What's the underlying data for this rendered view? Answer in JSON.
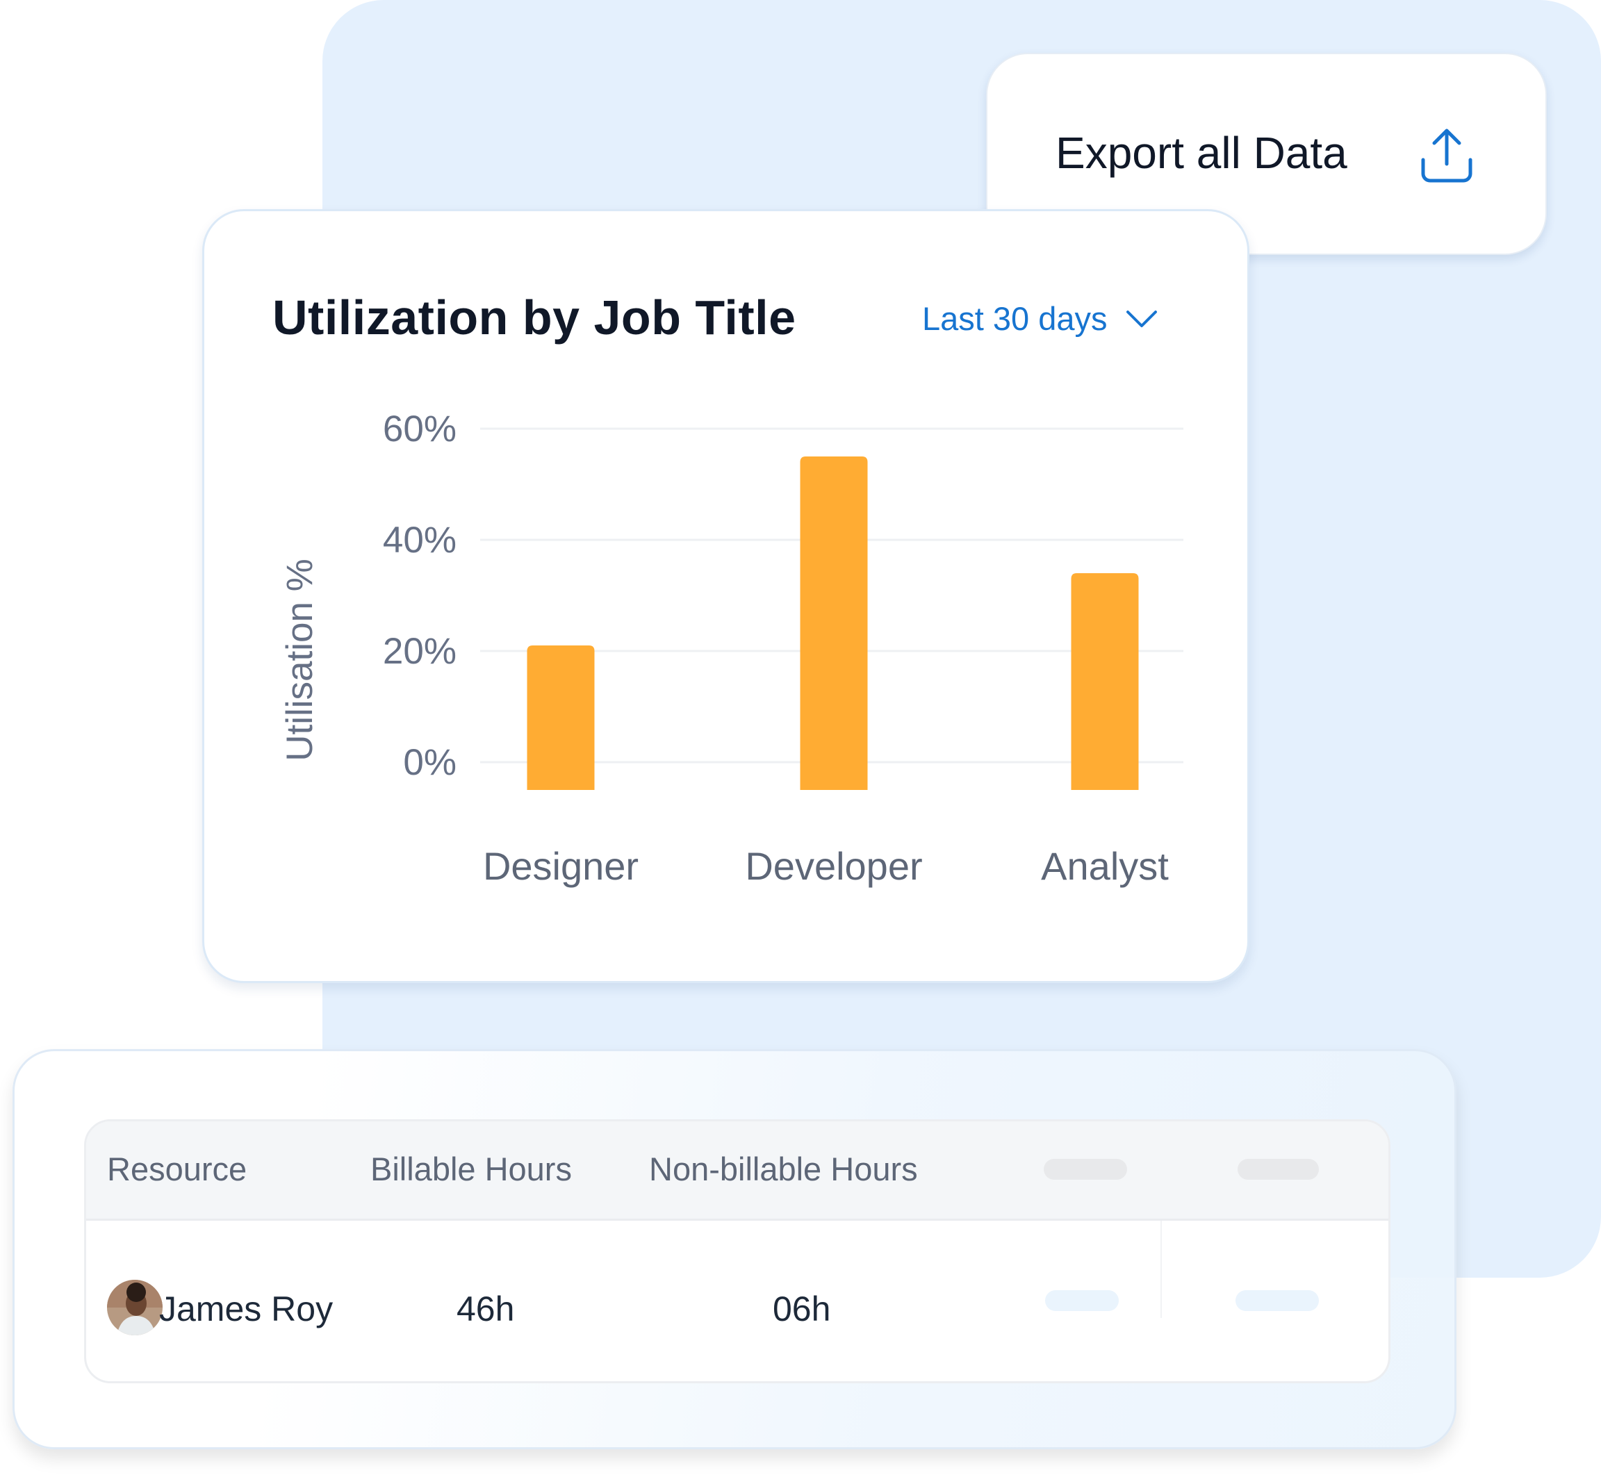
{
  "export": {
    "label": "Export all Data",
    "icon": "upload-icon",
    "color": "#1774d0"
  },
  "card": {
    "title": "Utilization by Job Title",
    "range_label": "Last 30 days",
    "range_icon": "chevron-down-icon"
  },
  "chart_data": {
    "type": "bar",
    "title": "Utilization by Job Title",
    "categories": [
      "Designer",
      "Developer",
      "Analyst"
    ],
    "values": [
      21,
      55,
      34
    ],
    "ylabel": "Utilisation %",
    "xlabel": "",
    "ylim": [
      0,
      60
    ],
    "yticks": [
      "0%",
      "20%",
      "40%",
      "60%"
    ],
    "grid": true,
    "bar_color": "#ffac33"
  },
  "table": {
    "headers": [
      "Resource",
      "Billable Hours",
      "Non-billable Hours"
    ],
    "rows": [
      {
        "name": "James Roy",
        "billable": "46h",
        "nonbillable": "06h"
      }
    ]
  }
}
